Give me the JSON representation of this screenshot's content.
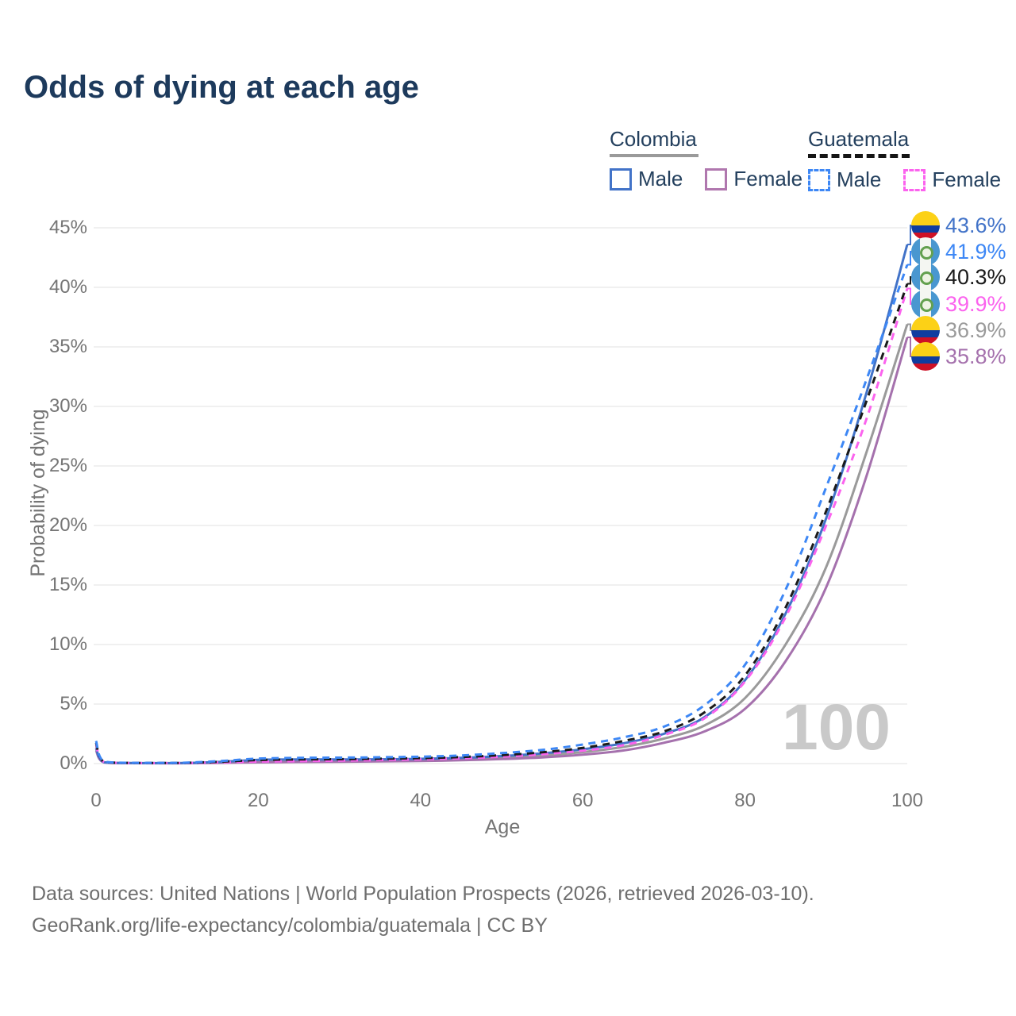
{
  "title": "Odds of dying at each age",
  "legend": {
    "colombia": {
      "label": "Colombia",
      "male_label": "Male",
      "female_label": "Female"
    },
    "guatemala": {
      "label": "Guatemala",
      "male_label": "Male",
      "female_label": "Female"
    }
  },
  "colors": {
    "title_text": "#1d3a5c",
    "legend_text": "#24405e",
    "axis_text": "#757575",
    "grid": "#ececec",
    "watermark": "#c9c9c9",
    "footer_text": "#6e6e6e",
    "colombia_male": "#4273c8",
    "colombia_female": "#a571ad",
    "colombia_total": "#9a9a9a",
    "guatemala_male": "#3d87f5",
    "guatemala_female": "#fb63ee",
    "guatemala_total": "#1a1a1a"
  },
  "chart_data": {
    "type": "line",
    "title": "Odds of dying at each age",
    "xlabel": "Age",
    "ylabel": "Probability of dying",
    "xlim": [
      0,
      100
    ],
    "ylim": [
      0,
      45
    ],
    "grid": "horizontal",
    "watermark": "100",
    "x_ticks": [
      {
        "value": 0,
        "label": "0"
      },
      {
        "value": 20,
        "label": "20"
      },
      {
        "value": 40,
        "label": "40"
      },
      {
        "value": 60,
        "label": "60"
      },
      {
        "value": 80,
        "label": "80"
      },
      {
        "value": 100,
        "label": "100"
      }
    ],
    "y_ticks": [
      {
        "value": 0,
        "label": "0%"
      },
      {
        "value": 5,
        "label": "5%"
      },
      {
        "value": 10,
        "label": "10%"
      },
      {
        "value": 15,
        "label": "15%"
      },
      {
        "value": 20,
        "label": "20%"
      },
      {
        "value": 25,
        "label": "25%"
      },
      {
        "value": 30,
        "label": "30%"
      },
      {
        "value": 35,
        "label": "35%"
      },
      {
        "value": 40,
        "label": "40%"
      },
      {
        "value": 45,
        "label": "45%"
      }
    ],
    "series": [
      {
        "id": "colombia_total",
        "name": "Colombia",
        "sex": "Both",
        "color": "#9a9a9a",
        "dash": false,
        "end_value": 36.9,
        "end_label": "36.9%",
        "points": [
          [
            0,
            1.25
          ],
          [
            1,
            0.1
          ],
          [
            5,
            0.035
          ],
          [
            10,
            0.03
          ],
          [
            15,
            0.1
          ],
          [
            20,
            0.21
          ],
          [
            25,
            0.24
          ],
          [
            30,
            0.25
          ],
          [
            35,
            0.27
          ],
          [
            40,
            0.31
          ],
          [
            45,
            0.38
          ],
          [
            50,
            0.5
          ],
          [
            55,
            0.68
          ],
          [
            60,
            0.97
          ],
          [
            65,
            1.4
          ],
          [
            70,
            2.1
          ],
          [
            75,
            3.2
          ],
          [
            80,
            5.5
          ],
          [
            85,
            10.0
          ],
          [
            90,
            16.5
          ],
          [
            95,
            26.2
          ],
          [
            100,
            36.9
          ]
        ]
      },
      {
        "id": "colombia_female",
        "name": "Colombia",
        "sex": "Female",
        "color": "#a571ad",
        "dash": false,
        "end_value": 35.8,
        "end_label": "35.8%",
        "points": [
          [
            0,
            1.1
          ],
          [
            1,
            0.09
          ],
          [
            5,
            0.03
          ],
          [
            10,
            0.025
          ],
          [
            15,
            0.06
          ],
          [
            20,
            0.1
          ],
          [
            25,
            0.13
          ],
          [
            30,
            0.15
          ],
          [
            35,
            0.18
          ],
          [
            40,
            0.22
          ],
          [
            45,
            0.28
          ],
          [
            50,
            0.38
          ],
          [
            55,
            0.52
          ],
          [
            60,
            0.75
          ],
          [
            65,
            1.1
          ],
          [
            70,
            1.75
          ],
          [
            75,
            2.7
          ],
          [
            80,
            4.6
          ],
          [
            85,
            8.6
          ],
          [
            90,
            14.8
          ],
          [
            95,
            24.2
          ],
          [
            100,
            35.8
          ]
        ]
      },
      {
        "id": "colombia_male",
        "name": "Colombia",
        "sex": "Male",
        "color": "#4273c8",
        "dash": false,
        "end_value": 43.6,
        "end_label": "43.6%",
        "points": [
          [
            0,
            1.35
          ],
          [
            1,
            0.11
          ],
          [
            5,
            0.04
          ],
          [
            10,
            0.04
          ],
          [
            15,
            0.13
          ],
          [
            20,
            0.32
          ],
          [
            25,
            0.35
          ],
          [
            30,
            0.35
          ],
          [
            35,
            0.36
          ],
          [
            40,
            0.4
          ],
          [
            45,
            0.48
          ],
          [
            50,
            0.63
          ],
          [
            55,
            0.86
          ],
          [
            60,
            1.2
          ],
          [
            65,
            1.7
          ],
          [
            70,
            2.5
          ],
          [
            75,
            3.9
          ],
          [
            80,
            7.0
          ],
          [
            85,
            12.6
          ],
          [
            90,
            20.6
          ],
          [
            95,
            31.2
          ],
          [
            100,
            43.6
          ]
        ]
      },
      {
        "id": "guatemala_female",
        "name": "Guatemala",
        "sex": "Female",
        "color": "#fb63ee",
        "dash": true,
        "end_value": 39.9,
        "end_label": "39.9%",
        "points": [
          [
            0,
            1.6
          ],
          [
            1,
            0.13
          ],
          [
            5,
            0.045
          ],
          [
            10,
            0.04
          ],
          [
            15,
            0.1
          ],
          [
            20,
            0.17
          ],
          [
            25,
            0.21
          ],
          [
            30,
            0.25
          ],
          [
            35,
            0.3
          ],
          [
            40,
            0.36
          ],
          [
            45,
            0.45
          ],
          [
            50,
            0.58
          ],
          [
            55,
            0.78
          ],
          [
            60,
            1.08
          ],
          [
            65,
            1.55
          ],
          [
            70,
            2.4
          ],
          [
            75,
            3.8
          ],
          [
            80,
            6.9
          ],
          [
            85,
            12.3
          ],
          [
            90,
            20.0
          ],
          [
            95,
            29.0
          ],
          [
            100,
            39.9
          ]
        ]
      },
      {
        "id": "guatemala_total",
        "name": "Guatemala",
        "sex": "Both",
        "color": "#1a1a1a",
        "dash": true,
        "end_value": 40.3,
        "end_label": "40.3%",
        "points": [
          [
            0,
            1.75
          ],
          [
            1,
            0.14
          ],
          [
            5,
            0.05
          ],
          [
            10,
            0.05
          ],
          [
            15,
            0.15
          ],
          [
            20,
            0.3
          ],
          [
            25,
            0.35
          ],
          [
            30,
            0.37
          ],
          [
            35,
            0.41
          ],
          [
            40,
            0.46
          ],
          [
            45,
            0.55
          ],
          [
            50,
            0.71
          ],
          [
            55,
            0.95
          ],
          [
            60,
            1.32
          ],
          [
            65,
            1.9
          ],
          [
            70,
            2.7
          ],
          [
            75,
            4.3
          ],
          [
            80,
            7.4
          ],
          [
            85,
            13.1
          ],
          [
            90,
            21.2
          ],
          [
            95,
            30.5
          ],
          [
            100,
            40.3
          ]
        ]
      },
      {
        "id": "guatemala_male",
        "name": "Guatemala",
        "sex": "Male",
        "color": "#3d87f5",
        "dash": true,
        "end_value": 41.9,
        "end_label": "41.9%",
        "points": [
          [
            0,
            1.9
          ],
          [
            1,
            0.16
          ],
          [
            5,
            0.06
          ],
          [
            10,
            0.06
          ],
          [
            15,
            0.2
          ],
          [
            20,
            0.42
          ],
          [
            25,
            0.48
          ],
          [
            30,
            0.5
          ],
          [
            35,
            0.53
          ],
          [
            40,
            0.58
          ],
          [
            45,
            0.68
          ],
          [
            50,
            0.88
          ],
          [
            55,
            1.15
          ],
          [
            60,
            1.6
          ],
          [
            65,
            2.2
          ],
          [
            70,
            3.1
          ],
          [
            75,
            4.9
          ],
          [
            80,
            8.3
          ],
          [
            85,
            14.6
          ],
          [
            90,
            23.2
          ],
          [
            95,
            32.3
          ],
          [
            100,
            41.9
          ]
        ]
      }
    ],
    "end_labels": [
      {
        "series": "colombia_male",
        "flag": "colombia",
        "label": "43.6%",
        "color": "#4273c8"
      },
      {
        "series": "guatemala_male",
        "flag": "guatemala",
        "label": "41.9%",
        "color": "#3d87f5"
      },
      {
        "series": "guatemala_total",
        "flag": "guatemala",
        "label": "40.3%",
        "color": "#1a1a1a"
      },
      {
        "series": "guatemala_female",
        "flag": "guatemala",
        "label": "39.9%",
        "color": "#fb63ee"
      },
      {
        "series": "colombia_total",
        "flag": "colombia",
        "label": "36.9%",
        "color": "#9a9a9a"
      },
      {
        "series": "colombia_female",
        "flag": "colombia",
        "label": "35.8%",
        "color": "#a571ad"
      }
    ]
  },
  "footer": {
    "line1": "Data sources: United Nations | World Population Prospects (2026, retrieved 2026-03-10).",
    "line2": "GeoRank.org/life-expectancy/colombia/guatemala | CC BY"
  }
}
